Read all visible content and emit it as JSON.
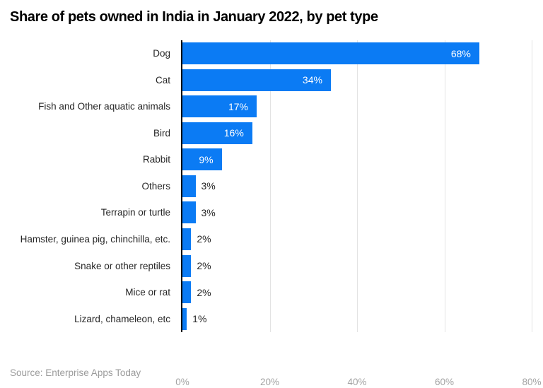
{
  "title": "Share of pets owned in India in January 2022, by pet type",
  "source": "Source: Enterprise Apps Today",
  "chart_data": {
    "type": "bar",
    "orientation": "horizontal",
    "title": "Share of pets owned in India in January 2022, by pet type",
    "categories": [
      "Dog",
      "Cat",
      "Fish and Other aquatic animals",
      "Bird",
      "Rabbit",
      "Others",
      "Terrapin or turtle",
      "Hamster, guinea pig, chinchilla, etc.",
      "Snake or other reptiles",
      "Mice or rat",
      "Lizard, chameleon, etc"
    ],
    "values": [
      68,
      34,
      17,
      16,
      9,
      3,
      3,
      2,
      2,
      2,
      1
    ],
    "value_labels": [
      "68%",
      "34%",
      "17%",
      "16%",
      "9%",
      "3%",
      "3%",
      "2%",
      "2%",
      "2%",
      "1%"
    ],
    "xlabel": "",
    "ylabel": "",
    "xlim": [
      0,
      80
    ],
    "x_ticks": [
      {
        "label": "0%",
        "value": 0
      },
      {
        "label": "20%",
        "value": 20
      },
      {
        "label": "40%",
        "value": 40
      },
      {
        "label": "60%",
        "value": 60
      },
      {
        "label": "80%",
        "value": 80
      }
    ],
    "gridline_values": [
      20,
      40,
      60,
      80
    ],
    "grid": "vertical",
    "legend": "none",
    "bar_color": "#0b7bf4",
    "inside_value_color": "#ffffff",
    "outside_value_color": "#262626",
    "axis_tick_color": "#a3a3a3"
  }
}
